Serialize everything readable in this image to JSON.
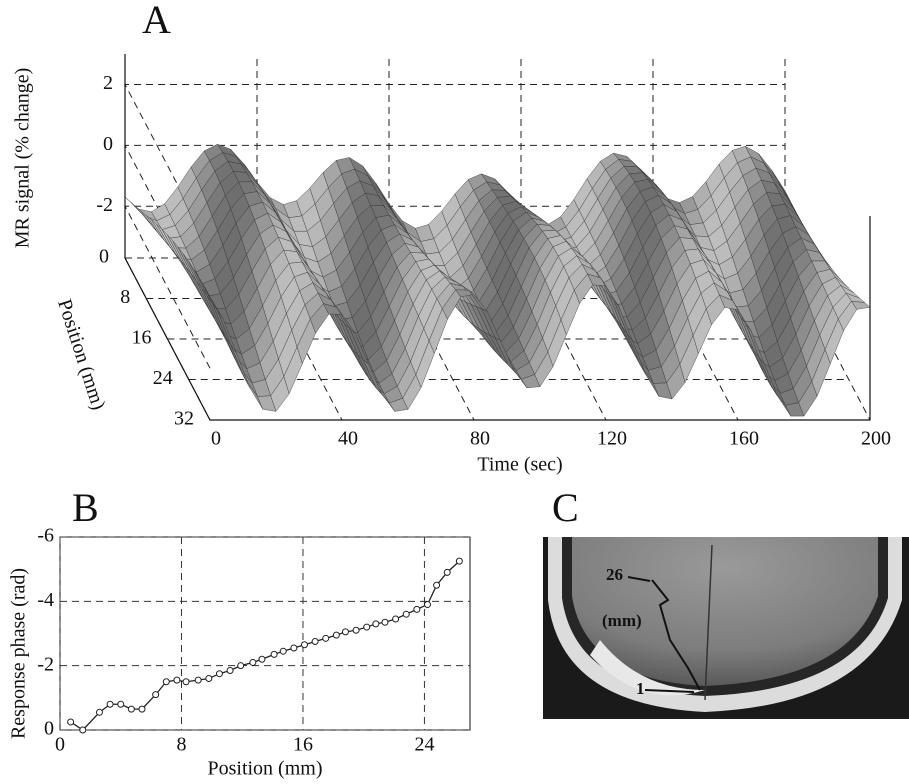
{
  "chart_data": [
    {
      "type": "surface",
      "panel": "A",
      "zlabel": "MR signal (% change)",
      "ylabel": "Position (mm)",
      "xlabel": "Time (sec)",
      "xlim": [
        0,
        200
      ],
      "xticks": [
        0,
        40,
        80,
        120,
        160,
        200
      ],
      "ylim": [
        0,
        32
      ],
      "yticks": [
        0,
        8,
        16,
        24,
        32
      ],
      "zlim": [
        -3.7,
        3
      ],
      "zticks": [
        -2,
        0,
        2
      ],
      "grid": true
    },
    {
      "type": "line",
      "panel": "B",
      "xlabel": "Position (mm)",
      "ylabel": "Response phase (rad)",
      "xlim": [
        0,
        27
      ],
      "xticks": [
        0,
        8,
        16,
        24
      ],
      "ylim": [
        0,
        -6
      ],
      "yticks": [
        0,
        -2,
        -4,
        -6
      ],
      "grid": true,
      "color": "#222",
      "x": [
        0.7,
        1.5,
        2.6,
        3.3,
        4.0,
        4.7,
        5.4,
        6.3,
        7.0,
        7.7,
        8.3,
        9.1,
        9.8,
        10.5,
        11.2,
        11.9,
        12.7,
        13.3,
        14.1,
        14.7,
        15.4,
        16.1,
        16.8,
        17.5,
        18.2,
        18.8,
        19.5,
        20.2,
        20.8,
        21.4,
        22.1,
        22.8,
        23.5,
        24.2,
        24.8,
        25.5,
        26.3
      ],
      "values": [
        -0.25,
        0.0,
        -0.55,
        -0.8,
        -0.8,
        -0.65,
        -0.65,
        -1.1,
        -1.5,
        -1.55,
        -1.5,
        -1.55,
        -1.6,
        -1.75,
        -1.85,
        -2.0,
        -2.1,
        -2.2,
        -2.35,
        -2.45,
        -2.55,
        -2.65,
        -2.75,
        -2.85,
        -2.95,
        -3.05,
        -3.1,
        -3.2,
        -3.3,
        -3.35,
        -3.45,
        -3.6,
        -3.75,
        -3.9,
        -4.5,
        -4.9,
        -5.25
      ]
    }
  ],
  "image": {
    "panel": "C",
    "annotations": [
      "26",
      "(mm)",
      "1"
    ]
  }
}
